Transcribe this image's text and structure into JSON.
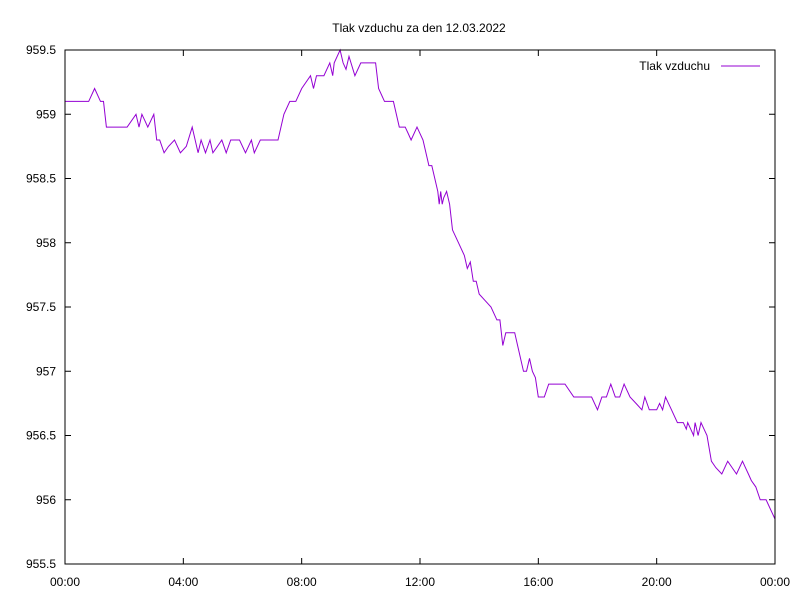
{
  "chart_data": {
    "type": "line",
    "title": "Tlak vzduchu za den 12.03.2022",
    "xlabel": "",
    "ylabel": "",
    "xlim": [
      0,
      24
    ],
    "ylim": [
      955.5,
      959.5
    ],
    "x_ticks": [
      {
        "value": 0,
        "label": "00:00"
      },
      {
        "value": 4,
        "label": "04:00"
      },
      {
        "value": 8,
        "label": "08:00"
      },
      {
        "value": 12,
        "label": "12:00"
      },
      {
        "value": 16,
        "label": "16:00"
      },
      {
        "value": 20,
        "label": "20:00"
      },
      {
        "value": 24,
        "label": "00:00"
      }
    ],
    "y_ticks": [
      {
        "value": 955.5,
        "label": "955.5"
      },
      {
        "value": 956,
        "label": "956"
      },
      {
        "value": 956.5,
        "label": "956.5"
      },
      {
        "value": 957,
        "label": "957"
      },
      {
        "value": 957.5,
        "label": "957.5"
      },
      {
        "value": 958,
        "label": "958"
      },
      {
        "value": 958.5,
        "label": "958.5"
      },
      {
        "value": 959,
        "label": "959"
      },
      {
        "value": 959.5,
        "label": "959.5"
      }
    ],
    "grid": false,
    "legend": "top-right",
    "series": [
      {
        "name": "Tlak vzduchu",
        "color": "#9400d3",
        "x": [
          0,
          0.5,
          0.8,
          1.0,
          1.2,
          1.3,
          1.4,
          1.5,
          1.8,
          2.1,
          2.4,
          2.5,
          2.6,
          2.7,
          2.8,
          3.0,
          3.1,
          3.2,
          3.35,
          3.5,
          3.7,
          3.9,
          4.1,
          4.3,
          4.5,
          4.6,
          4.75,
          4.9,
          5.0,
          5.15,
          5.3,
          5.45,
          5.6,
          5.75,
          5.9,
          6.1,
          6.3,
          6.4,
          6.5,
          6.6,
          6.7,
          6.9,
          7.2,
          7.4,
          7.6,
          7.8,
          8.0,
          8.3,
          8.4,
          8.5,
          8.6,
          8.75,
          8.95,
          9.05,
          9.1,
          9.3,
          9.4,
          9.5,
          9.6,
          9.8,
          10.0,
          10.2,
          10.4,
          10.5,
          10.6,
          10.8,
          11.0,
          11.1,
          11.3,
          11.5,
          11.6,
          11.7,
          11.9,
          12.1,
          12.3,
          12.4,
          12.5,
          12.6,
          12.65,
          12.7,
          12.75,
          12.8,
          12.9,
          13.0,
          13.1,
          13.3,
          13.5,
          13.6,
          13.7,
          13.8,
          13.9,
          14.0,
          14.2,
          14.4,
          14.6,
          14.7,
          14.8,
          14.9,
          15.0,
          15.2,
          15.3,
          15.5,
          15.6,
          15.7,
          15.8,
          15.9,
          16.0,
          16.1,
          16.2,
          16.35,
          16.5,
          16.7,
          16.9,
          17.2,
          17.5,
          17.8,
          18.0,
          18.15,
          18.3,
          18.45,
          18.6,
          18.75,
          18.9,
          19.1,
          19.3,
          19.5,
          19.6,
          19.75,
          19.9,
          20.0,
          20.1,
          20.2,
          20.3,
          20.5,
          20.7,
          20.9,
          21.0,
          21.05,
          21.15,
          21.25,
          21.3,
          21.4,
          21.5,
          21.6,
          21.7,
          21.85,
          22.0,
          22.2,
          22.4,
          22.55,
          22.7,
          22.9,
          23.0,
          23.1,
          23.2,
          23.35,
          23.5,
          23.7,
          23.9,
          24.0
        ],
        "values": [
          959.1,
          959.1,
          959.1,
          959.2,
          959.1,
          959.1,
          958.9,
          958.9,
          958.9,
          958.9,
          959.0,
          958.9,
          959.0,
          958.95,
          958.9,
          959.0,
          958.8,
          958.8,
          958.7,
          958.75,
          958.8,
          958.7,
          958.75,
          958.9,
          958.7,
          958.8,
          958.7,
          958.8,
          958.7,
          958.75,
          958.8,
          958.7,
          958.8,
          958.8,
          958.8,
          958.7,
          958.8,
          958.7,
          958.75,
          958.8,
          958.8,
          958.8,
          958.8,
          959.0,
          959.1,
          959.1,
          959.2,
          959.3,
          959.2,
          959.3,
          959.3,
          959.3,
          959.4,
          959.3,
          959.4,
          959.5,
          959.4,
          959.35,
          959.45,
          959.3,
          959.4,
          959.4,
          959.4,
          959.4,
          959.2,
          959.1,
          959.1,
          959.1,
          958.9,
          958.9,
          958.85,
          958.8,
          958.9,
          958.8,
          958.6,
          958.6,
          958.5,
          958.4,
          958.3,
          958.4,
          958.3,
          958.35,
          958.4,
          958.3,
          958.1,
          958.0,
          957.9,
          957.8,
          957.85,
          957.7,
          957.7,
          957.6,
          957.55,
          957.5,
          957.4,
          957.4,
          957.2,
          957.3,
          957.3,
          957.3,
          957.2,
          957.0,
          957.0,
          957.1,
          957.0,
          956.95,
          956.8,
          956.8,
          956.8,
          956.9,
          956.9,
          956.9,
          956.9,
          956.8,
          956.8,
          956.8,
          956.7,
          956.8,
          956.8,
          956.9,
          956.8,
          956.8,
          956.9,
          956.8,
          956.75,
          956.7,
          956.8,
          956.7,
          956.7,
          956.7,
          956.75,
          956.7,
          956.8,
          956.7,
          956.6,
          956.6,
          956.55,
          956.6,
          956.55,
          956.5,
          956.6,
          956.5,
          956.6,
          956.55,
          956.5,
          956.3,
          956.25,
          956.2,
          956.3,
          956.25,
          956.2,
          956.3,
          956.25,
          956.2,
          956.15,
          956.1,
          956.0,
          956.0,
          955.9,
          955.85
        ]
      }
    ]
  }
}
